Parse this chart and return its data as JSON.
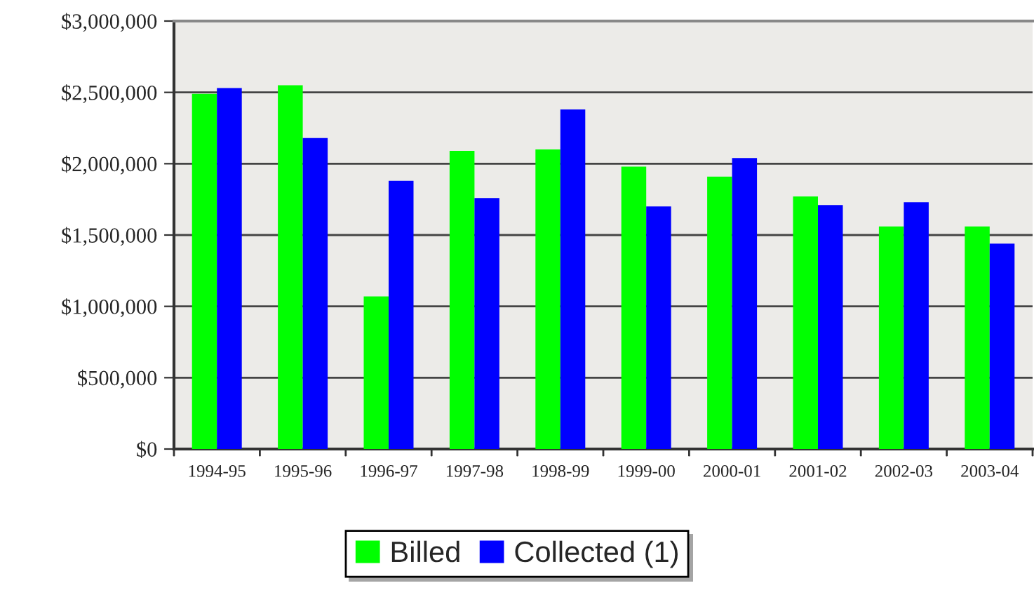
{
  "chart_data": {
    "type": "bar",
    "categories": [
      "1994-95",
      "1995-96",
      "1996-97",
      "1997-98",
      "1998-99",
      "1999-00",
      "2000-01",
      "2001-02",
      "2002-03",
      "2003-04"
    ],
    "series": [
      {
        "name": "Billed",
        "color": "#00ff00",
        "values": [
          2490000,
          2550000,
          1070000,
          2090000,
          2100000,
          1980000,
          1910000,
          1770000,
          1560000,
          1560000
        ]
      },
      {
        "name": "Collected (1)",
        "color": "#0000ff",
        "values": [
          2530000,
          2180000,
          1880000,
          1760000,
          2380000,
          1700000,
          2040000,
          1710000,
          1730000,
          1440000
        ]
      }
    ],
    "ylim": [
      0,
      3000000
    ],
    "yticks": [
      {
        "value": 0,
        "label": "$0"
      },
      {
        "value": 500000,
        "label": "$500,000"
      },
      {
        "value": 1000000,
        "label": "$1,000,000"
      },
      {
        "value": 1500000,
        "label": "$1,500,000"
      },
      {
        "value": 2000000,
        "label": "$2,000,000"
      },
      {
        "value": 2500000,
        "label": "$2,500,000"
      },
      {
        "value": 3000000,
        "label": "$3,000,000"
      }
    ],
    "grid": "y",
    "legend": "bottom"
  }
}
